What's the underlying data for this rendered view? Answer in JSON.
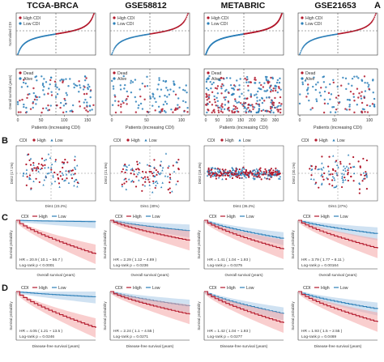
{
  "figure": {
    "panel_letters": [
      "A",
      "B",
      "C",
      "D"
    ],
    "cohorts": [
      "TCGA-BRCA",
      "GSE58812",
      "METABRIC",
      "GSE21653"
    ]
  },
  "panel_A": {
    "top_legend": [
      "High CDI",
      "Low CDI"
    ],
    "top_ylabel": "Normalized CDI",
    "bottom_legend": [
      "Dead",
      "Alive"
    ],
    "bottom_ylabel": "Overall survival (years)",
    "bottom_ylabel_alt": "Overall survival",
    "xlabel": "Patients (increasing CDI)",
    "xticks": [
      [
        "0",
        "50",
        "100",
        "150"
      ],
      [
        "0",
        "50",
        "100"
      ],
      [
        "0",
        "50",
        "100",
        "150",
        "200",
        "250",
        "300"
      ],
      [
        "0",
        "50",
        "100"
      ]
    ]
  },
  "panel_B": {
    "legend_title": "CDI",
    "legend_items": [
      "High",
      "Low"
    ],
    "axis_labels": [
      {
        "x": "Dim1 (23.2%)",
        "y": "Dim2 (17.1%)"
      },
      {
        "x": "Dim1 (30%)",
        "y": "Dim2 (21.5%)"
      },
      {
        "x": "Dim1 (36.2%)",
        "y": "Dim2 (18.4%)"
      },
      {
        "x": "Dim1 (27%)",
        "y": "Dim2 (20.1%)"
      }
    ]
  },
  "panel_C": {
    "legend_title": "CDI",
    "legend_items": [
      "High",
      "Low"
    ],
    "ylabel": "Survival probability",
    "xlabel": "Overall survival (years)",
    "stats": [
      {
        "hr": "HR = 20.9 ( 10.1 ~ 56.7 )",
        "p": "Log-rank p < 0.0001"
      },
      {
        "hr": "HR = 2.29 ( 1.12 ~ 4.89 )",
        "p": "Log-rank p = 0.0236"
      },
      {
        "hr": "HR = 1.41 ( 1.04 ~ 1.93 )",
        "p": "Log-rank p = 0.0275"
      },
      {
        "hr": "HR = 3.79 ( 1.77 ~ 8.11 )",
        "p": "Log-rank p = 0.00164"
      }
    ]
  },
  "panel_D": {
    "legend_title": "CDI",
    "legend_items": [
      "High",
      "Low"
    ],
    "ylabel": "Survival probability",
    "xlabel": "Disease-free survival (years)",
    "stats": [
      {
        "hr": "HR = 4.05 ( 1.21 ~ 13.5 )",
        "p": "Log-rank p = 0.0246"
      },
      {
        "hr": "HR = 2.24 ( 1.1 ~ 4.55 )",
        "p": "Log-rank p = 0.0271"
      },
      {
        "hr": "HR = 1.42 ( 1.04 ~ 1.93 )",
        "p": "Log-rank p = 0.0277"
      },
      {
        "hr": "HR = 1.93 ( 1.5 ~ 2.55 )",
        "p": "Log-rank p = 0.0469"
      }
    ]
  },
  "colors": {
    "high": "#b2182b",
    "low": "#2c7fb8",
    "high_band": "#f4a6a6",
    "low_band": "#a9cbe8",
    "axis": "#333333",
    "grid": "#dddddd"
  }
}
